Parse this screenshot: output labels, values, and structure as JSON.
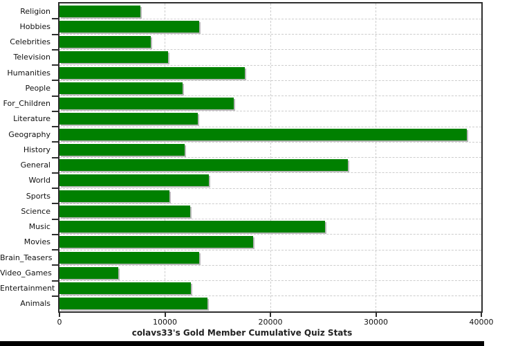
{
  "chart_data": {
    "type": "bar",
    "orientation": "horizontal",
    "title": "colavs33's Gold Member Cumulative Quiz Stats",
    "categories": [
      "Religion",
      "Hobbies",
      "Celebrities",
      "Television",
      "Humanities",
      "People",
      "For_Children",
      "Literature",
      "Geography",
      "History",
      "General",
      "World",
      "Sports",
      "Science",
      "Music",
      "Movies",
      "Brain_Teasers",
      "Video_Games",
      "Entertainment",
      "Animals"
    ],
    "values": [
      7650,
      13250,
      8650,
      10300,
      17550,
      11700,
      16550,
      13100,
      38650,
      11850,
      27350,
      14150,
      10400,
      12400,
      25200,
      18350,
      13250,
      5550,
      12450,
      14000
    ],
    "xlabel": "",
    "ylabel": "",
    "xlim": [
      0,
      40000
    ],
    "x_ticks": [
      0,
      10000,
      20000,
      30000,
      40000
    ],
    "grid": true,
    "legend_position": "none",
    "bar_color": "#008000",
    "bar_shadow_color": "#b9b9b9",
    "gridline_color": "#cccccc",
    "axis_color": "#2e2e2e",
    "title_color": "#222222",
    "label_color": "#111111",
    "background_color": "#ffffff"
  }
}
